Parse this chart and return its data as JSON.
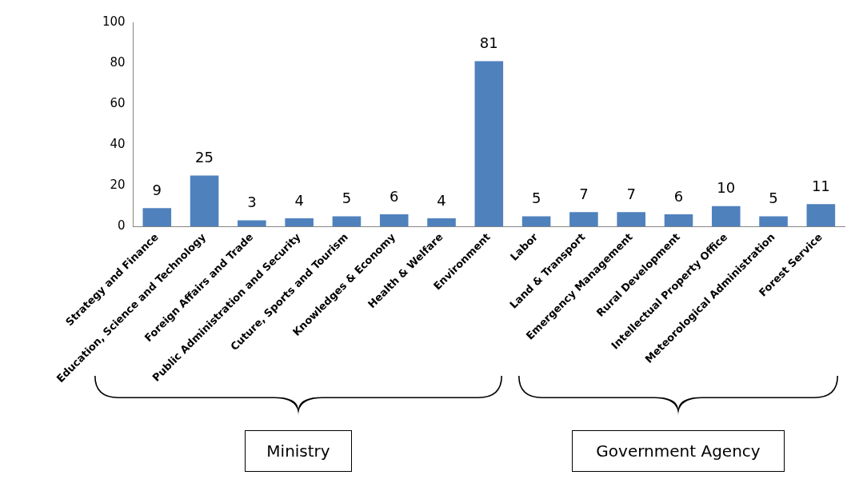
{
  "chart_data": {
    "type": "bar",
    "categories": [
      "Strategy and Finance",
      "Education, Science and Technology",
      "Foreign Affairs and Trade",
      "Public Administration and Security",
      "Cuture, Sports and Tourism",
      "Knowledges & Economy",
      "Health & Welfare",
      "Environment",
      "Labor",
      "Land & Transport",
      "Emergency Management",
      "Rural Development",
      "Intellectual Property Office",
      "Meteorological Administration",
      "Forest Service"
    ],
    "values": [
      9,
      25,
      3,
      4,
      5,
      6,
      4,
      81,
      5,
      7,
      7,
      6,
      10,
      5,
      11
    ],
    "color": "#4f81bd",
    "ylim": [
      0,
      100
    ],
    "yticks": [
      0,
      20,
      40,
      60,
      80,
      100
    ],
    "data_labels": true,
    "grid": false,
    "legend": false,
    "annotations": [
      "Ministry",
      "Government Agency"
    ]
  }
}
